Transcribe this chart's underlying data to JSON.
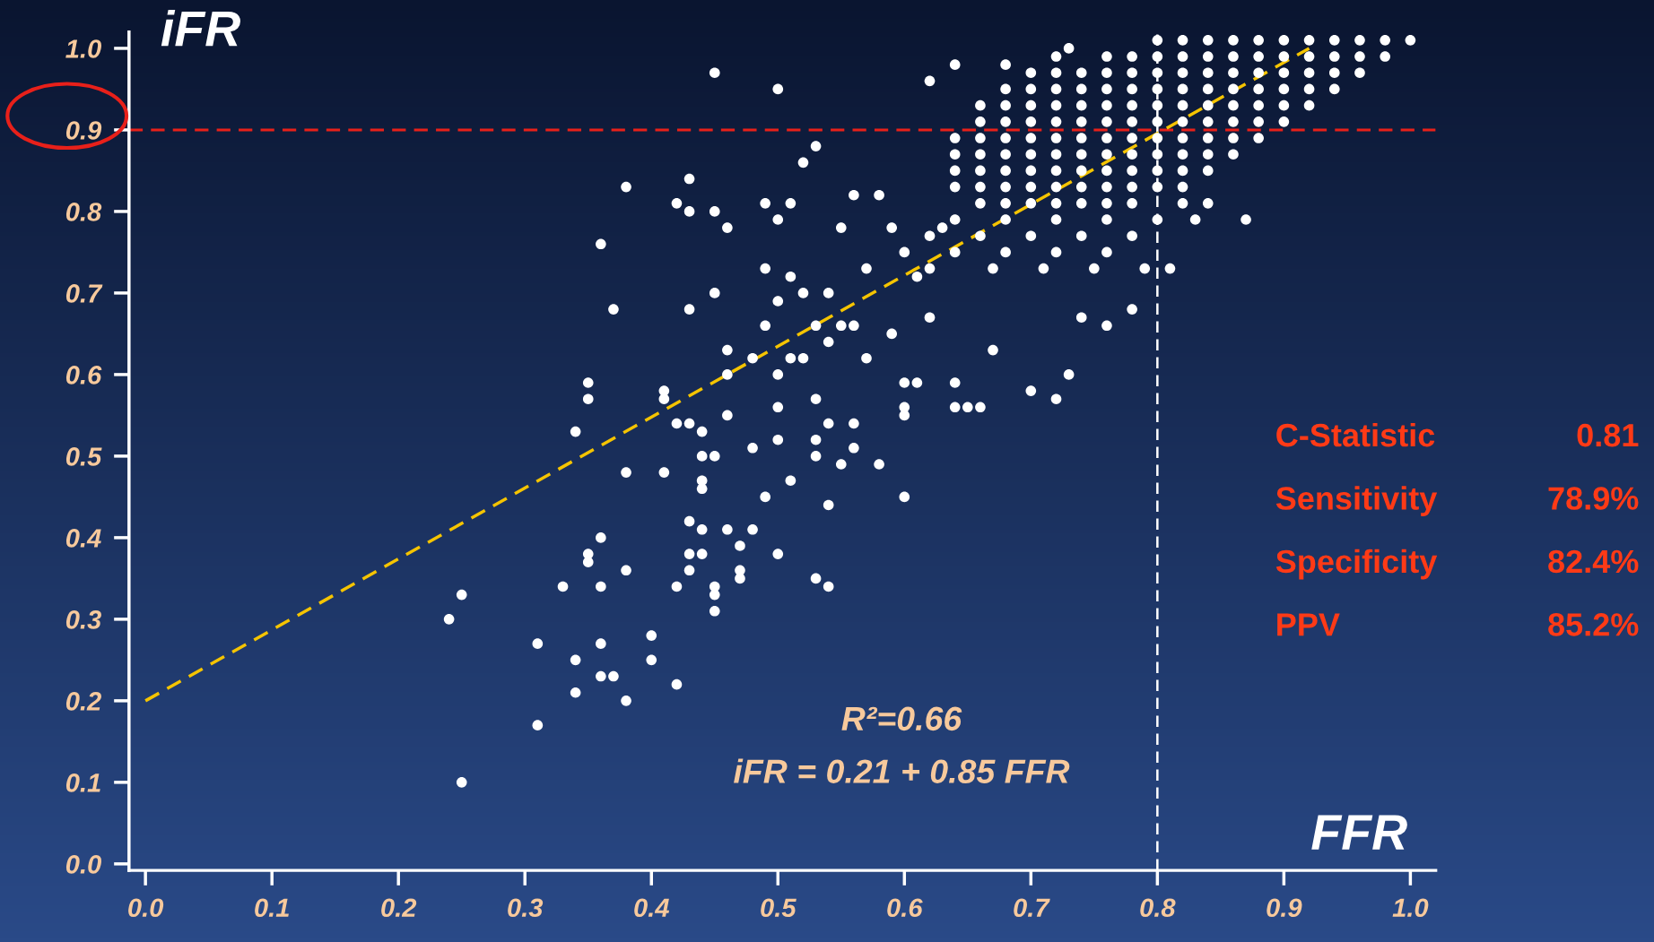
{
  "chart_data": {
    "type": "scatter",
    "xlabel": "FFR",
    "ylabel": "iFR",
    "xlim": [
      -0.013,
      1.02
    ],
    "ylim": [
      -0.008,
      1.02
    ],
    "xticks": [
      {
        "value": 0,
        "label": "0.0"
      },
      0.1,
      0.2,
      0.3,
      0.4,
      0.5,
      0.6,
      0.7,
      0.8,
      0.9,
      {
        "value": 1,
        "label": "1.0"
      }
    ],
    "yticks": [
      {
        "value": 0,
        "label": "0.0"
      },
      0.1,
      0.2,
      0.3,
      0.4,
      0.5,
      0.6,
      0.7,
      0.8,
      0.9,
      {
        "value": 1,
        "label": "1.0"
      }
    ],
    "marker": "circle",
    "series": [
      {
        "color": "#ffffff",
        "x": [
          0.24,
          0.25,
          0.25,
          0.31,
          0.31,
          0.33,
          0.34,
          0.34,
          0.34,
          0.35,
          0.35,
          0.35,
          0.35,
          0.36,
          0.36,
          0.36,
          0.36,
          0.36,
          0.37,
          0.37,
          0.38,
          0.38,
          0.38,
          0.38,
          0.4,
          0.4,
          0.41,
          0.41,
          0.41,
          0.42,
          0.42,
          0.42,
          0.42,
          0.43,
          0.43,
          0.43,
          0.43,
          0.43,
          0.43,
          0.43,
          0.44,
          0.44,
          0.44,
          0.44,
          0.44,
          0.44,
          0.45,
          0.45,
          0.45,
          0.45,
          0.45,
          0.45,
          0.45,
          0.46,
          0.46,
          0.46,
          0.46,
          0.46,
          0.47,
          0.47,
          0.47,
          0.48,
          0.48,
          0.48,
          0.49,
          0.49,
          0.49,
          0.49,
          0.5,
          0.5,
          0.5,
          0.5,
          0.5,
          0.5,
          0.5,
          0.51,
          0.51,
          0.51,
          0.51,
          0.52,
          0.52,
          0.52,
          0.53,
          0.53,
          0.53,
          0.53,
          0.53,
          0.53,
          0.54,
          0.54,
          0.54,
          0.54,
          0.54,
          0.55,
          0.55,
          0.55,
          0.56,
          0.56,
          0.56,
          0.56,
          0.57,
          0.57,
          0.58,
          0.58,
          0.59,
          0.59,
          0.6,
          0.6,
          0.6,
          0.6,
          0.61,
          0.61,
          0.62,
          0.62,
          0.63,
          0.64,
          0.64,
          0.64,
          0.65,
          0.66,
          0.67,
          0.68,
          0.7,
          0.72,
          0.73,
          0.74,
          0.76,
          0.78,
          0.72,
          0.73
        ],
        "values": [
          0.3,
          0.33,
          0.1,
          0.27,
          0.17,
          0.34,
          0.53,
          0.25,
          0.21,
          0.59,
          0.57,
          0.38,
          0.37,
          0.76,
          0.4,
          0.34,
          0.27,
          0.23,
          0.23,
          0.68,
          0.83,
          0.48,
          0.36,
          0.2,
          0.28,
          0.25,
          0.58,
          0.57,
          0.48,
          0.81,
          0.54,
          0.34,
          0.22,
          0.84,
          0.8,
          0.68,
          0.54,
          0.42,
          0.38,
          0.36,
          0.53,
          0.5,
          0.47,
          0.46,
          0.41,
          0.38,
          0.97,
          0.8,
          0.7,
          0.5,
          0.34,
          0.33,
          0.31,
          0.78,
          0.63,
          0.6,
          0.55,
          0.41,
          0.39,
          0.36,
          0.35,
          0.62,
          0.51,
          0.41,
          0.81,
          0.73,
          0.66,
          0.45,
          0.95,
          0.79,
          0.69,
          0.6,
          0.56,
          0.52,
          0.38,
          0.81,
          0.72,
          0.62,
          0.47,
          0.86,
          0.7,
          0.62,
          0.88,
          0.66,
          0.57,
          0.52,
          0.5,
          0.35,
          0.7,
          0.64,
          0.54,
          0.44,
          0.34,
          0.78,
          0.66,
          0.49,
          0.82,
          0.66,
          0.54,
          0.51,
          0.73,
          0.62,
          0.49,
          0.82,
          0.78,
          0.65,
          0.56,
          0.55,
          0.45,
          0.59,
          0.59,
          0.72,
          0.96,
          0.67,
          0.78,
          0.59,
          0.56,
          0.98,
          0.56,
          0.56,
          0.63,
          0.98,
          0.58,
          0.57,
          0.6,
          0.67,
          0.66,
          0.68,
          0.99,
          1.0
        ]
      },
      {
        "color": "#ffffff",
        "x": [
          0.8,
          0.82,
          0.84,
          0.86,
          0.88,
          0.9,
          0.92,
          0.94,
          0.96,
          0.98,
          1.0
        ],
        "values": [
          1.01,
          1.01,
          1.01,
          1.01,
          1.01,
          1.01,
          1.01,
          1.01,
          1.01,
          1.01,
          1.01
        ]
      },
      {
        "color": "#ffffff",
        "x": [
          0.76,
          0.78,
          0.8,
          0.82,
          0.84,
          0.86,
          0.88,
          0.9,
          0.92,
          0.94,
          0.96,
          0.98
        ],
        "values": [
          0.99,
          0.99,
          0.99,
          0.99,
          0.99,
          0.99,
          0.99,
          0.99,
          0.99,
          0.99,
          0.99,
          0.99
        ]
      },
      {
        "color": "#ffffff",
        "x": [
          0.7,
          0.72,
          0.74,
          0.76,
          0.78,
          0.8,
          0.82,
          0.84,
          0.86,
          0.88,
          0.9,
          0.92,
          0.94,
          0.96
        ],
        "values": [
          0.97,
          0.97,
          0.97,
          0.97,
          0.97,
          0.97,
          0.97,
          0.97,
          0.97,
          0.97,
          0.97,
          0.97,
          0.97,
          0.97
        ]
      },
      {
        "color": "#ffffff",
        "x": [
          0.68,
          0.7,
          0.72,
          0.74,
          0.76,
          0.78,
          0.8,
          0.82,
          0.84,
          0.86,
          0.88,
          0.9,
          0.92,
          0.94
        ],
        "values": [
          0.95,
          0.95,
          0.95,
          0.95,
          0.95,
          0.95,
          0.95,
          0.95,
          0.95,
          0.95,
          0.95,
          0.95,
          0.95,
          0.95
        ]
      },
      {
        "color": "#ffffff",
        "x": [
          0.66,
          0.68,
          0.7,
          0.72,
          0.74,
          0.76,
          0.78,
          0.8,
          0.82,
          0.84,
          0.86,
          0.88,
          0.9,
          0.92
        ],
        "values": [
          0.93,
          0.93,
          0.93,
          0.93,
          0.93,
          0.93,
          0.93,
          0.93,
          0.93,
          0.93,
          0.93,
          0.93,
          0.93,
          0.93
        ]
      },
      {
        "color": "#ffffff",
        "x": [
          0.66,
          0.68,
          0.7,
          0.72,
          0.74,
          0.76,
          0.78,
          0.8,
          0.82,
          0.84,
          0.86,
          0.88,
          0.9
        ],
        "values": [
          0.91,
          0.91,
          0.91,
          0.91,
          0.91,
          0.91,
          0.91,
          0.91,
          0.91,
          0.91,
          0.91,
          0.91,
          0.91
        ]
      },
      {
        "color": "#ffffff",
        "x": [
          0.64,
          0.66,
          0.68,
          0.7,
          0.72,
          0.74,
          0.76,
          0.78,
          0.8,
          0.82,
          0.84,
          0.86,
          0.88
        ],
        "values": [
          0.89,
          0.89,
          0.89,
          0.89,
          0.89,
          0.89,
          0.89,
          0.89,
          0.89,
          0.89,
          0.89,
          0.89,
          0.89
        ]
      },
      {
        "color": "#ffffff",
        "x": [
          0.64,
          0.66,
          0.68,
          0.7,
          0.72,
          0.74,
          0.76,
          0.78,
          0.8,
          0.82,
          0.84,
          0.86
        ],
        "values": [
          0.87,
          0.87,
          0.87,
          0.87,
          0.87,
          0.87,
          0.87,
          0.87,
          0.87,
          0.87,
          0.87,
          0.87
        ]
      },
      {
        "color": "#ffffff",
        "x": [
          0.64,
          0.66,
          0.68,
          0.7,
          0.72,
          0.74,
          0.76,
          0.78,
          0.8,
          0.82,
          0.84
        ],
        "values": [
          0.85,
          0.85,
          0.85,
          0.85,
          0.85,
          0.85,
          0.85,
          0.85,
          0.85,
          0.85,
          0.85
        ]
      },
      {
        "color": "#ffffff",
        "x": [
          0.64,
          0.66,
          0.68,
          0.7,
          0.72,
          0.74,
          0.76,
          0.78,
          0.8,
          0.82
        ],
        "values": [
          0.83,
          0.83,
          0.83,
          0.83,
          0.83,
          0.83,
          0.83,
          0.83,
          0.83,
          0.83
        ]
      },
      {
        "color": "#ffffff",
        "x": [
          0.66,
          0.68,
          0.7,
          0.72,
          0.74,
          0.76,
          0.78,
          0.82,
          0.84
        ],
        "values": [
          0.81,
          0.81,
          0.81,
          0.81,
          0.81,
          0.81,
          0.81,
          0.81,
          0.81
        ]
      },
      {
        "color": "#ffffff",
        "x": [
          0.64,
          0.68,
          0.72,
          0.76,
          0.8,
          0.83,
          0.87
        ],
        "values": [
          0.79,
          0.79,
          0.79,
          0.79,
          0.79,
          0.79,
          0.79
        ]
      },
      {
        "color": "#ffffff",
        "x": [
          0.62,
          0.66,
          0.7,
          0.74,
          0.78
        ],
        "values": [
          0.77,
          0.77,
          0.77,
          0.77,
          0.77
        ]
      },
      {
        "color": "#ffffff",
        "x": [
          0.6,
          0.64,
          0.68,
          0.72,
          0.76
        ],
        "values": [
          0.75,
          0.75,
          0.75,
          0.75,
          0.75
        ]
      },
      {
        "color": "#ffffff",
        "x": [
          0.62,
          0.67,
          0.71,
          0.75,
          0.79,
          0.81
        ],
        "values": [
          0.73,
          0.73,
          0.73,
          0.73,
          0.73,
          0.73
        ]
      },
      {
        "type": "line",
        "color": "#f5c400",
        "line_style": "dashed",
        "marker": "none",
        "x": [
          0,
          0.92
        ],
        "values": [
          0.2,
          1.0
        ]
      }
    ],
    "ref_lines": [
      {
        "axis": "y",
        "value": 0.9,
        "color": "#e8201a",
        "line_style": "dashed"
      },
      {
        "axis": "x",
        "value": 0.8,
        "color": "#ffffff",
        "line_style": "dashed"
      }
    ],
    "annotations": [
      "R²=0.66",
      "iFR = 0.21 + 0.85 FFR",
      "C-Statistic",
      "0.81",
      "Sensitivity",
      "78.9%",
      "Specificity",
      "82.4%",
      "PPV",
      "85.2%"
    ]
  }
}
